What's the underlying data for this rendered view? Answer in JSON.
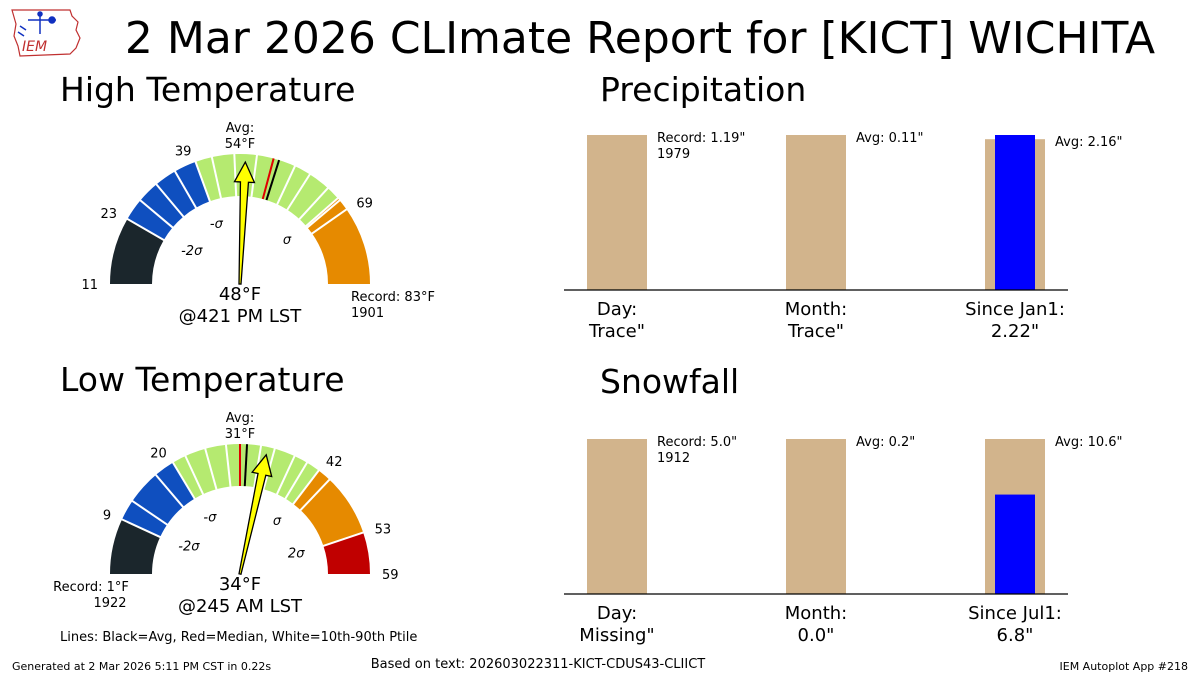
{
  "title": "2 Mar 2026 CLImate Report for [KICT] WICHITA",
  "logo_text": "IEM",
  "footer": {
    "generated": "Generated at 2 Mar 2026 5:11 PM CST in 0.22s",
    "based_on": "Based on text: 202603022311-KICT-CDUS43-CLIICT",
    "app": "IEM Autoplot App #218",
    "lines_note": "Lines: Black=Avg, Red=Median, White=10th-90th Ptile"
  },
  "colors": {
    "dark": "#1b262c",
    "blue": "#0f4fbf",
    "green": "#b5ea70",
    "orange": "#e68a00",
    "red": "#c00000",
    "tan": "#d2b48c",
    "obs_blue": "#0000ff",
    "needle": "#ffff00"
  },
  "chart_data": [
    {
      "type": "gauge",
      "title": "High Temperature",
      "range": [
        11,
        83
      ],
      "bands": [
        {
          "from": 11,
          "to": 23,
          "color": "dark"
        },
        {
          "from": 23,
          "to": 39,
          "color": "blue"
        },
        {
          "from": 39,
          "to": 66.5,
          "color": "green"
        },
        {
          "from": 66.5,
          "to": 69,
          "color": "orange"
        },
        {
          "from": 69,
          "to": 83,
          "color": "orange"
        }
      ],
      "ticks": [
        {
          "value": 11,
          "label": "11"
        },
        {
          "value": 23,
          "label": "23"
        },
        {
          "value": 39,
          "label": "39"
        },
        {
          "value": 69,
          "label": "69"
        }
      ],
      "sigma_labels": [
        {
          "value": 23,
          "label": "-2σ"
        },
        {
          "value": 36.5,
          "label": "-σ"
        },
        {
          "value": 66.5,
          "label": "σ"
        }
      ],
      "avg": 54,
      "median": 53,
      "ptile_lines": [
        27,
        31,
        35,
        42,
        46,
        50,
        57,
        60,
        64,
        67
      ],
      "avg_label": "Avg:",
      "avg_value_label": "54°F",
      "observed": 48,
      "observed_label": "48°F",
      "time_label": "@421 PM LST",
      "record_side": "high",
      "record_label": "Record: 83°F",
      "record_year": "1901"
    },
    {
      "type": "gauge",
      "title": "Low Temperature",
      "range": [
        1,
        59
      ],
      "bands": [
        {
          "from": 1,
          "to": 9,
          "color": "dark"
        },
        {
          "from": 9,
          "to": 20,
          "color": "blue"
        },
        {
          "from": 20,
          "to": 42,
          "color": "green"
        },
        {
          "from": 42,
          "to": 53,
          "color": "orange"
        },
        {
          "from": 53,
          "to": 59,
          "color": "red"
        }
      ],
      "ticks": [
        {
          "value": 9,
          "label": "9"
        },
        {
          "value": 20,
          "label": "20"
        },
        {
          "value": 42,
          "label": "42"
        },
        {
          "value": 53,
          "label": "53"
        },
        {
          "value": 59,
          "label": "59"
        }
      ],
      "sigma_labels": [
        {
          "value": 9,
          "label": "-2σ"
        },
        {
          "value": 19.5,
          "label": "-σ"
        },
        {
          "value": 42,
          "label": "σ"
        },
        {
          "value": 53,
          "label": "2σ"
        }
      ],
      "avg": 31,
      "median": 30,
      "ptile_lines": [
        12,
        17,
        22,
        25,
        28,
        33,
        35,
        38,
        40,
        44
      ],
      "avg_label": "Avg:",
      "avg_value_label": "31°F",
      "observed": 34,
      "observed_label": "34°F",
      "time_label": "@245 AM LST",
      "record_side": "low",
      "record_label": "Record: 1°F",
      "record_year": "1922"
    },
    {
      "type": "bar",
      "title": "Precipitation",
      "categories": [
        "Day:",
        "Month:",
        "Since Jan1:"
      ],
      "value_labels": [
        "Trace\"",
        "Trace\"",
        "2.22\""
      ],
      "reference_values": [
        1.19,
        0.11,
        2.16
      ],
      "reference_scale_max": [
        1.19,
        0.11,
        2.22
      ],
      "observed": [
        0,
        0,
        2.22
      ],
      "annotations": [
        {
          "line1": "Record: 1.19\"",
          "line2": "1979"
        },
        {
          "line1": "Avg: 0.11\"",
          "line2": ""
        },
        {
          "line1": "Avg: 2.16\"",
          "line2": ""
        }
      ]
    },
    {
      "type": "bar",
      "title": "Snowfall",
      "categories": [
        "Day:",
        "Month:",
        "Since Jul1:"
      ],
      "value_labels": [
        "Missing\"",
        "0.0\"",
        "6.8\""
      ],
      "reference_values": [
        5.0,
        0.2,
        10.6
      ],
      "reference_scale_max": [
        5.0,
        0.2,
        10.6
      ],
      "observed": [
        0,
        0,
        6.8
      ],
      "annotations": [
        {
          "line1": "Record: 5.0\"",
          "line2": "1912"
        },
        {
          "line1": "Avg: 0.2\"",
          "line2": ""
        },
        {
          "line1": "Avg: 10.6\"",
          "line2": ""
        }
      ]
    }
  ]
}
